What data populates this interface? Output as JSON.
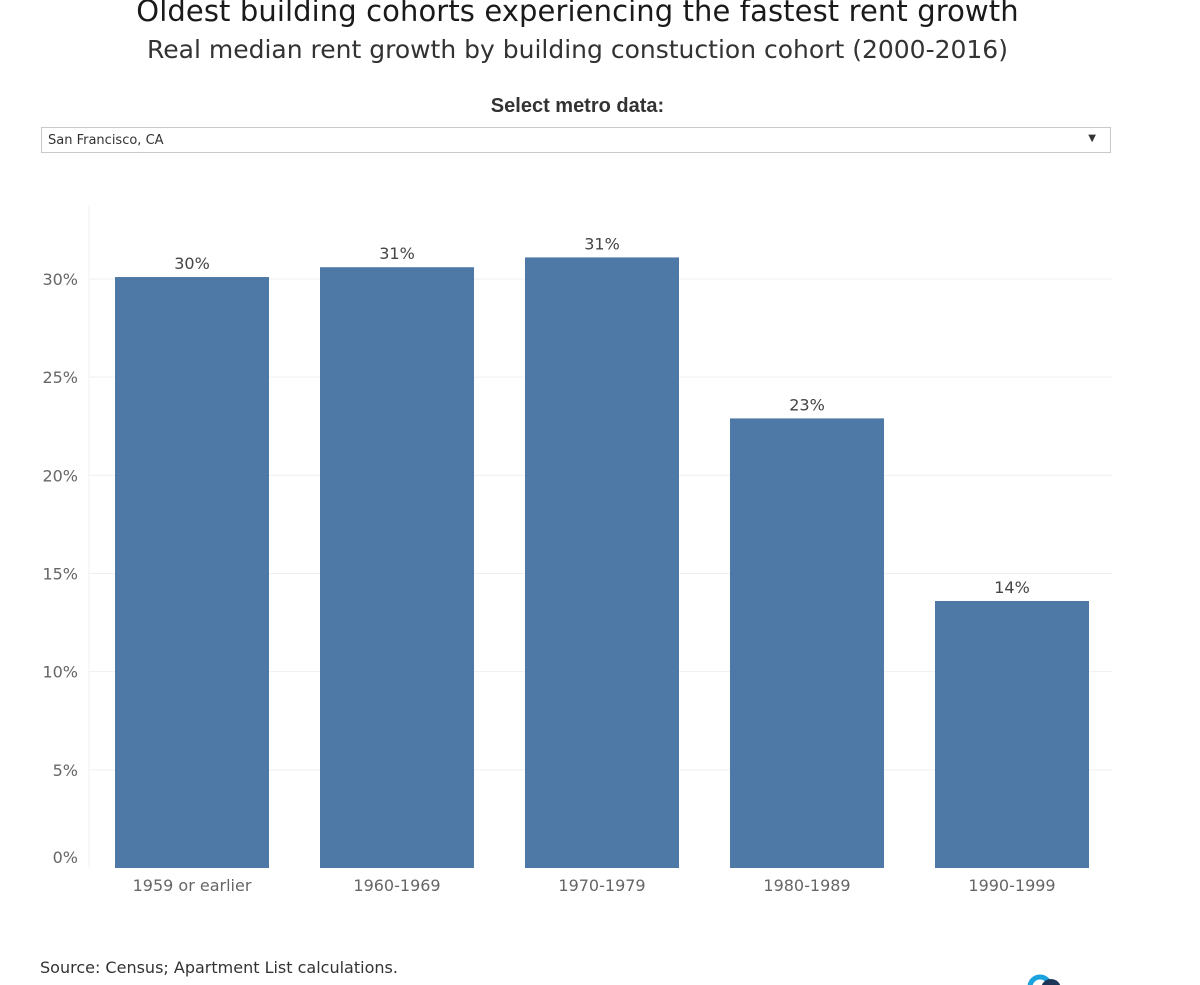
{
  "header": {
    "title": "Oldest building cohorts experiencing the fastest rent growth",
    "subtitle": "Real median rent growth by building constuction cohort (2000-2016)"
  },
  "filter": {
    "label": "Select metro data:",
    "selected": "San Francisco, CA",
    "arrow_icon": "caret-down-icon"
  },
  "footer": {
    "source": "Source: Census; Apartment List calculations."
  },
  "colors": {
    "bar": "#4e79a7",
    "grid": "#efefef",
    "axis_text": "#666666",
    "label_text": "#444444",
    "logo_blue": "#1aa3dc",
    "logo_dark": "#1d3557"
  },
  "chart_data": {
    "type": "bar",
    "categories": [
      "1959 or earlier",
      "1960-1969",
      "1970-1979",
      "1980-1989",
      "1990-1999"
    ],
    "values": [
      30.1,
      30.6,
      31.1,
      22.9,
      13.6
    ],
    "data_labels": [
      "30%",
      "31%",
      "31%",
      "23%",
      "14%"
    ],
    "yticks": [
      0,
      5,
      10,
      15,
      20,
      25,
      30
    ],
    "ytick_labels": [
      "0%",
      "5%",
      "10%",
      "15%",
      "20%",
      "25%",
      "30%"
    ],
    "ylim": [
      0,
      32
    ],
    "xlabel": "",
    "ylabel": "",
    "grid": true,
    "legend": "none"
  }
}
